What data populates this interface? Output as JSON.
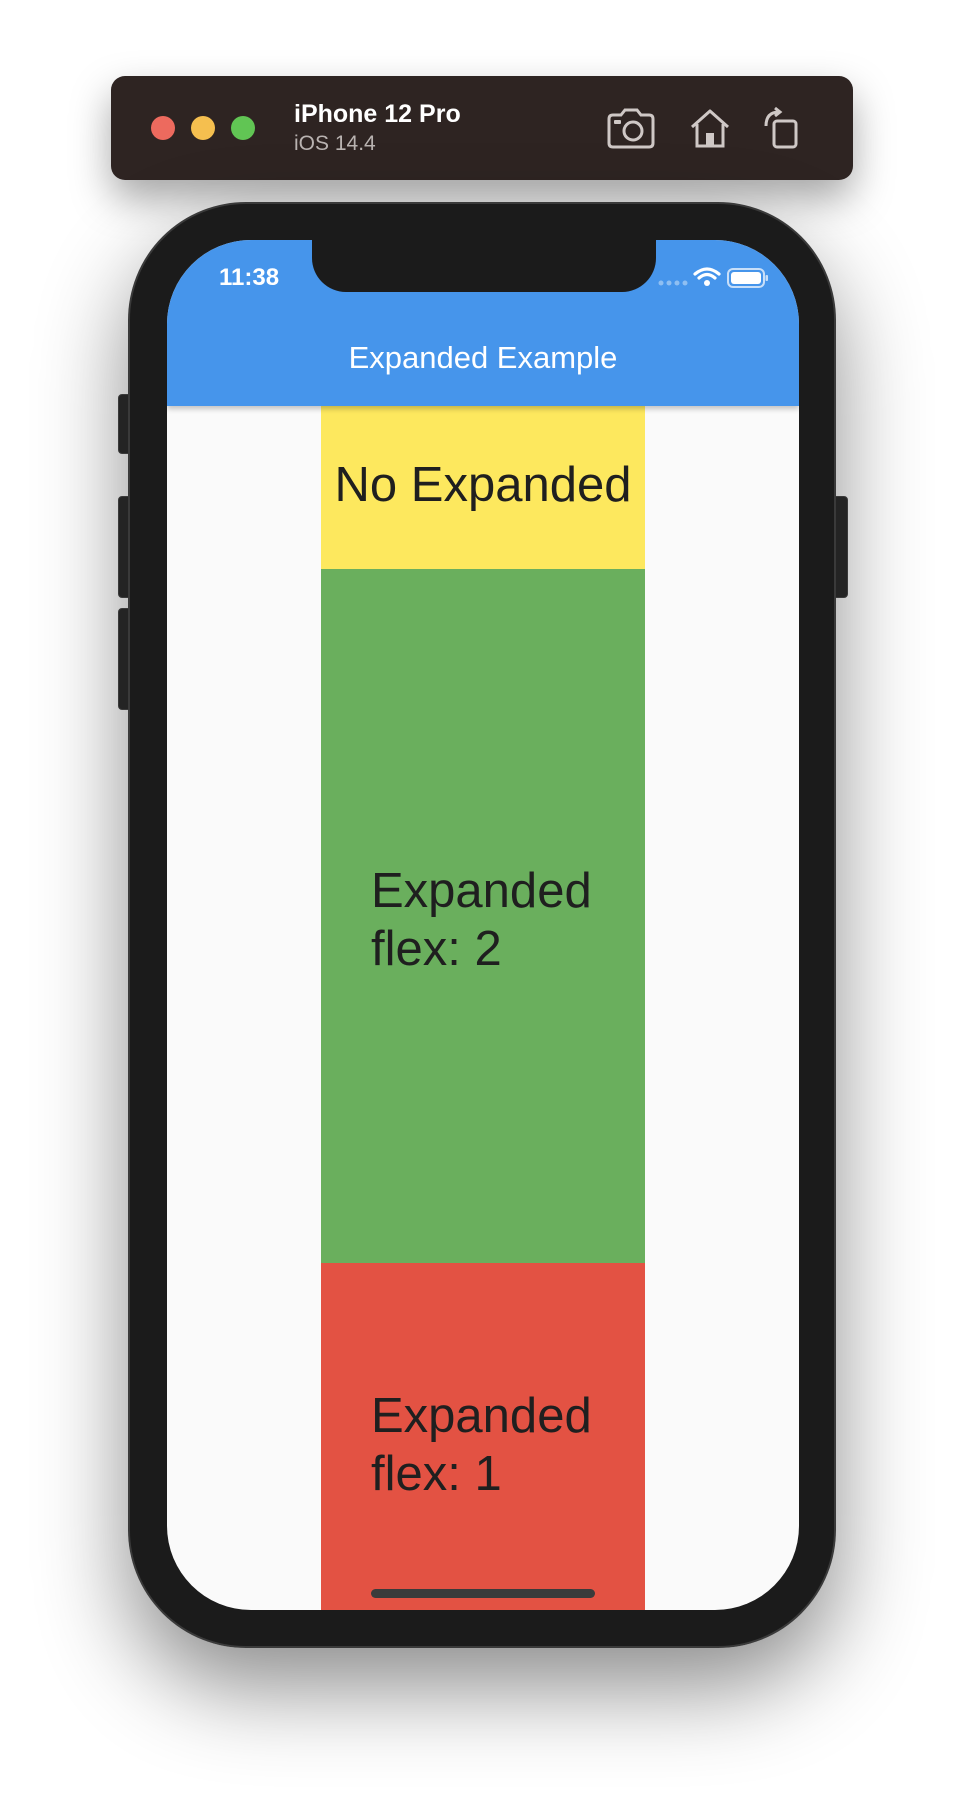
{
  "simulator": {
    "device_name": "iPhone 12 Pro",
    "os_version": "iOS 14.4",
    "icons": [
      "screenshot-icon",
      "home-icon",
      "rotate-icon"
    ]
  },
  "status_bar": {
    "time": "11:38",
    "icons": [
      "signal-icon",
      "wifi-icon",
      "battery-icon"
    ]
  },
  "app_bar": {
    "title": "Expanded Example",
    "color": "#4695eb"
  },
  "blocks": [
    {
      "label": "No Expanded",
      "color": "#fde85e"
    },
    {
      "label_line1": "Expanded",
      "label_line2": "flex: 2",
      "color": "#6aaf5d"
    },
    {
      "label_line1": "Expanded",
      "label_line2": "flex: 1",
      "color": "#e35243"
    }
  ]
}
